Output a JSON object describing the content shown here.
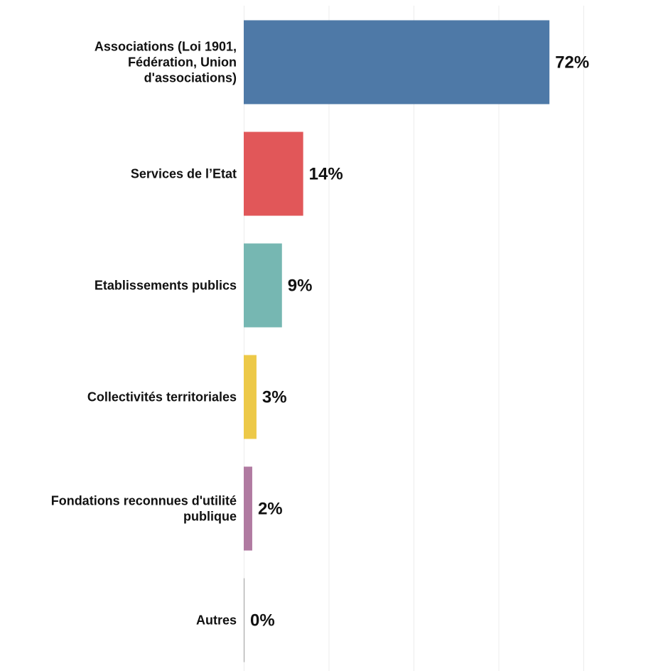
{
  "chart_data": {
    "type": "bar",
    "orientation": "horizontal",
    "categories": [
      [
        "Associations (Loi 1901,",
        "Fédération, Union",
        "d'associations)"
      ],
      [
        "Services de l’Etat"
      ],
      [
        "Etablissements publics"
      ],
      [
        "Collectivités territoriales"
      ],
      [
        "Fondations reconnues d'utilité",
        "publique"
      ],
      [
        "Autres"
      ]
    ],
    "values": [
      72,
      14,
      9,
      3,
      2,
      0
    ],
    "value_labels": [
      "72%",
      "14%",
      "9%",
      "3%",
      "2%",
      "0%"
    ],
    "colors": [
      "#4e79a7",
      "#e15759",
      "#76b7b2",
      "#edc948",
      "#b07aa1",
      "#9c9c9c"
    ],
    "xlim": [
      0,
      100
    ],
    "grid": true,
    "title": "",
    "xlabel": "",
    "ylabel": ""
  }
}
